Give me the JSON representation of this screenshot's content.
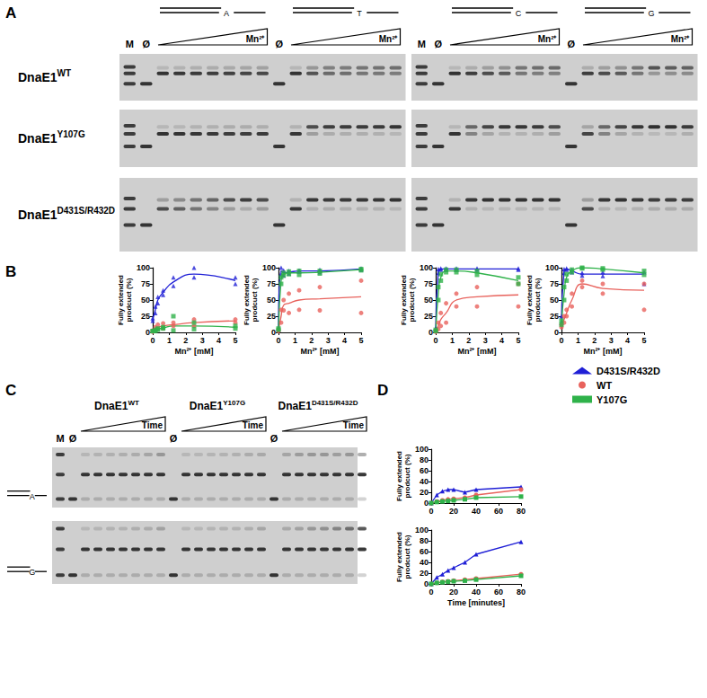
{
  "panel_labels": [
    "A",
    "B",
    "C",
    "D"
  ],
  "lane_labels": {
    "marker": "M",
    "blank": "Ø"
  },
  "gel_A": {
    "gradient_label": "Mn²⁺",
    "templates": [
      "A",
      "T",
      "C",
      "G"
    ],
    "rows": [
      {
        "name": "DnaE1",
        "sup": "WT"
      },
      {
        "name": "DnaE1",
        "sup": "Y107G"
      },
      {
        "name": "DnaE1",
        "sup": "D431S/R432D"
      }
    ]
  },
  "gel_C": {
    "gradient_label": "Time",
    "templates": [
      "A",
      "G"
    ],
    "columns": [
      {
        "name": "DnaE1",
        "sup": "WT"
      },
      {
        "name": "DnaE1",
        "sup": "Y107G"
      },
      {
        "name": "DnaE1",
        "sup": "D431S/R432D"
      }
    ]
  },
  "chart_data": [
    {
      "type": "line",
      "x_label": "Mn²⁺ [mM]",
      "y_label": "Fully extended prodcuct (%)",
      "x": [
        0,
        0.16,
        0.31,
        0.63,
        1.25,
        2.5,
        5
      ],
      "xlim": [
        0,
        5
      ],
      "xticks": [
        0,
        1,
        2,
        3,
        4,
        5
      ],
      "ylim": [
        0,
        100
      ],
      "yticks": [
        0,
        25,
        50,
        75,
        100
      ],
      "grid": false,
      "series": [
        {
          "name": "D431S/R432D",
          "color": "#1f1fd6",
          "marker": "triangle",
          "values": [
            20,
            35,
            50,
            62,
            78,
            90,
            80
          ],
          "replicates": [
            [
              18,
              40,
              55,
              65,
              85,
              100,
              75
            ],
            [
              22,
              30,
              45,
              58,
              72,
              85,
              85
            ]
          ]
        },
        {
          "name": "WT",
          "color": "#e8625c",
          "marker": "circle",
          "values": [
            2,
            5,
            8,
            10,
            12,
            15,
            18
          ],
          "replicates": [
            [
              1,
              8,
              12,
              14,
              15,
              20,
              20
            ],
            [
              3,
              3,
              5,
              6,
              10,
              10,
              15
            ]
          ]
        },
        {
          "name": "Y107G",
          "color": "#2fb24a",
          "marker": "square",
          "values": [
            2,
            3,
            5,
            7,
            10,
            10,
            8
          ],
          "replicates": [
            [
              2,
              4,
              6,
              8,
              25,
              15,
              10
            ],
            [
              2,
              2,
              4,
              6,
              3,
              5,
              6
            ]
          ]
        }
      ]
    },
    {
      "type": "line",
      "x_label": "Mn²⁺ [mM]",
      "y_label": "Fully extended prodcuct (%)",
      "x": [
        0,
        0.16,
        0.31,
        0.63,
        1.25,
        2.5,
        5
      ],
      "xlim": [
        0,
        5
      ],
      "xticks": [
        0,
        1,
        2,
        3,
        4,
        5
      ],
      "ylim": [
        0,
        100
      ],
      "yticks": [
        0,
        25,
        50,
        75,
        100
      ],
      "grid": false,
      "series": [
        {
          "name": "D431S/R432D",
          "color": "#1f1fd6",
          "marker": "triangle",
          "values": [
            5,
            95,
            92,
            93,
            95,
            95,
            98
          ],
          "replicates": [
            [
              4,
              100,
              96,
              95,
              96,
              97,
              99
            ],
            [
              6,
              90,
              88,
              91,
              94,
              93,
              97
            ]
          ]
        },
        {
          "name": "WT",
          "color": "#e8625c",
          "marker": "circle",
          "values": [
            3,
            25,
            42,
            45,
            50,
            52,
            55
          ],
          "replicates": [
            [
              4,
              35,
              50,
              60,
              65,
              70,
              80
            ],
            [
              2,
              15,
              34,
              30,
              35,
              34,
              30
            ]
          ]
        },
        {
          "name": "Y107G",
          "color": "#2fb24a",
          "marker": "square",
          "values": [
            5,
            80,
            90,
            92,
            92,
            93,
            97
          ],
          "replicates": [
            [
              6,
              85,
              92,
              94,
              95,
              95,
              98
            ],
            [
              4,
              75,
              88,
              90,
              89,
              91,
              96
            ]
          ]
        }
      ]
    },
    {
      "type": "line",
      "x_label": "Mn²⁺ [mM]",
      "y_label": "Fully extended prodcuct (%)",
      "x": [
        0,
        0.16,
        0.31,
        0.63,
        1.25,
        2.5,
        5
      ],
      "xlim": [
        0,
        5
      ],
      "xticks": [
        0,
        1,
        2,
        3,
        4,
        5
      ],
      "ylim": [
        0,
        100
      ],
      "yticks": [
        0,
        25,
        50,
        75,
        100
      ],
      "grid": false,
      "series": [
        {
          "name": "D431S/R432D",
          "color": "#1f1fd6",
          "marker": "triangle",
          "values": [
            5,
            95,
            98,
            98,
            98,
            98,
            98
          ],
          "replicates": [
            [
              6,
              98,
              99,
              99,
              99,
              99,
              99
            ],
            [
              4,
              92,
              97,
              97,
              97,
              97,
              97
            ]
          ]
        },
        {
          "name": "WT",
          "color": "#e8625c",
          "marker": "circle",
          "values": [
            2,
            10,
            20,
            30,
            50,
            55,
            58
          ],
          "replicates": [
            [
              3,
              15,
              30,
              45,
              60,
              70,
              75
            ],
            [
              1,
              5,
              10,
              15,
              40,
              40,
              40
            ]
          ]
        },
        {
          "name": "Y107G",
          "color": "#2fb24a",
          "marker": "square",
          "values": [
            3,
            60,
            85,
            95,
            95,
            92,
            80
          ],
          "replicates": [
            [
              4,
              70,
              90,
              97,
              97,
              95,
              85
            ],
            [
              2,
              50,
              80,
              93,
              93,
              89,
              75
            ]
          ]
        }
      ]
    },
    {
      "type": "line",
      "x_label": "Mn²⁺ [mM]",
      "y_label": "Fully extended prodcuct (%)",
      "x": [
        0,
        0.16,
        0.31,
        0.63,
        1.25,
        2.5,
        5
      ],
      "xlim": [
        0,
        5
      ],
      "xticks": [
        0,
        1,
        2,
        3,
        4,
        5
      ],
      "ylim": [
        0,
        100
      ],
      "yticks": [
        0,
        25,
        50,
        75,
        100
      ],
      "grid": false,
      "series": [
        {
          "name": "D431S/R432D",
          "color": "#1f1fd6",
          "marker": "triangle",
          "values": [
            20,
            95,
            98,
            95,
            90,
            90,
            90
          ],
          "replicates": [
            [
              25,
              98,
              99,
              97,
              92,
              93,
              93
            ],
            [
              15,
              92,
              97,
              93,
              88,
              87,
              75
            ]
          ]
        },
        {
          "name": "WT",
          "color": "#e8625c",
          "marker": "circle",
          "values": [
            10,
            20,
            30,
            50,
            75,
            68,
            65
          ],
          "replicates": [
            [
              12,
              25,
              35,
              60,
              80,
              75,
              75
            ],
            [
              8,
              15,
              25,
              40,
              70,
              60,
              35
            ]
          ]
        },
        {
          "name": "Y107G",
          "color": "#2fb24a",
          "marker": "square",
          "values": [
            15,
            60,
            85,
            95,
            100,
            98,
            92
          ],
          "replicates": [
            [
              18,
              70,
              90,
              97,
              100,
              99,
              95
            ],
            [
              12,
              50,
              80,
              93,
              99,
              97,
              89
            ]
          ]
        }
      ]
    },
    {
      "type": "line",
      "y_label": "Fully extended prodcuct (%)",
      "legend": "upper right",
      "x": [
        0,
        5,
        10,
        15,
        20,
        30,
        40,
        80
      ],
      "xlim": [
        0,
        80
      ],
      "xticks": [
        0,
        20,
        40,
        60,
        80
      ],
      "ylim": [
        0,
        100
      ],
      "yticks": [
        0,
        20,
        40,
        60,
        80,
        100
      ],
      "grid": false,
      "series": [
        {
          "name": "D431S/R432D",
          "color": "#1f1fd6",
          "marker": "triangle",
          "values": [
            0,
            15,
            22,
            25,
            25,
            20,
            25,
            30
          ]
        },
        {
          "name": "WT",
          "color": "#e8625c",
          "marker": "circle",
          "values": [
            0,
            3,
            5,
            7,
            8,
            10,
            15,
            25
          ]
        },
        {
          "name": "Y107G",
          "color": "#2fb24a",
          "marker": "square",
          "values": [
            0,
            2,
            3,
            4,
            5,
            7,
            10,
            12
          ]
        }
      ]
    },
    {
      "type": "line",
      "x_label": "Time [minutes]",
      "y_label": "Fully extended prodcuct (%)",
      "x": [
        0,
        5,
        10,
        15,
        20,
        30,
        40,
        80
      ],
      "xlim": [
        0,
        80
      ],
      "xticks": [
        0,
        20,
        40,
        60,
        80
      ],
      "ylim": [
        0,
        100
      ],
      "yticks": [
        0,
        20,
        40,
        60,
        80,
        100
      ],
      "grid": false,
      "series": [
        {
          "name": "D431S/R432D",
          "color": "#1f1fd6",
          "marker": "triangle",
          "values": [
            0,
            12,
            18,
            25,
            30,
            40,
            55,
            78
          ]
        },
        {
          "name": "WT",
          "color": "#e8625c",
          "marker": "circle",
          "values": [
            0,
            2,
            4,
            5,
            6,
            8,
            10,
            18
          ]
        },
        {
          "name": "Y107G",
          "color": "#2fb24a",
          "marker": "square",
          "values": [
            0,
            2,
            3,
            4,
            5,
            6,
            8,
            15
          ]
        }
      ]
    }
  ]
}
